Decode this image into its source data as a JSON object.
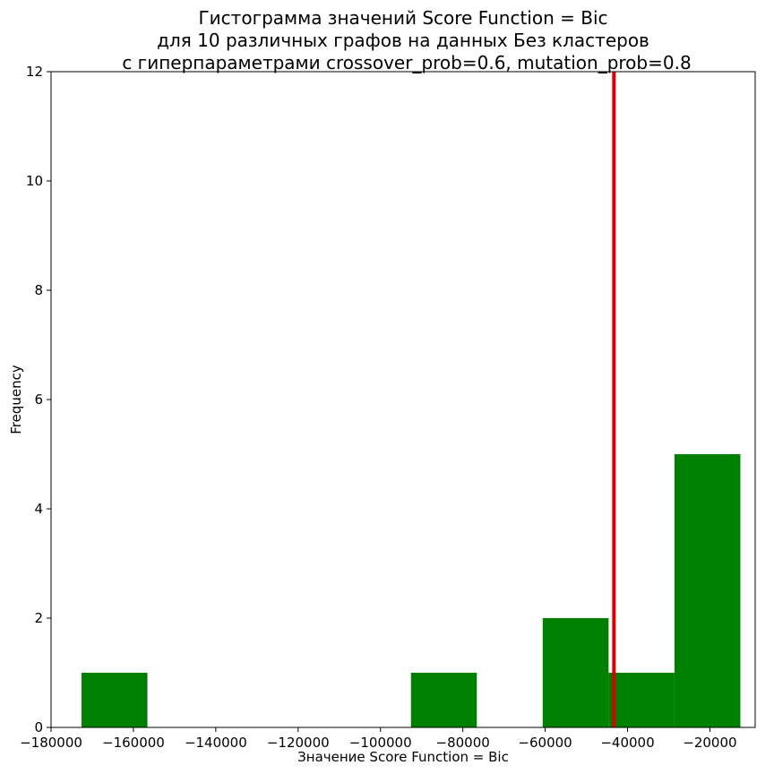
{
  "chart_data": {
    "type": "bar",
    "title_lines": [
      "Гистограмма значений Score Function = Bic",
      "для 10 различных графов на данных Без кластеров",
      "с гиперпараметрами crossover_prob=0.6, mutation_prob=0.8"
    ],
    "xlabel": "Значение Score Function = Bic",
    "ylabel": "Frequency",
    "xlim": [
      -180000,
      -9000
    ],
    "ylim": [
      0,
      12
    ],
    "xticks": [
      -180000,
      -160000,
      -140000,
      -120000,
      -100000,
      -80000,
      -60000,
      -40000,
      -20000
    ],
    "xtick_labels": [
      "−180000",
      "−160000",
      "−140000",
      "−120000",
      "−100000",
      "−80000",
      "−60000",
      "−40000",
      "−20000"
    ],
    "yticks": [
      0,
      2,
      4,
      6,
      8,
      10,
      12
    ],
    "ytick_labels": [
      "0",
      "2",
      "4",
      "6",
      "8",
      "10",
      "12"
    ],
    "bins": [
      {
        "x0": -172600,
        "x1": -156600,
        "count": 1
      },
      {
        "x0": -156600,
        "x1": -140600,
        "count": 0
      },
      {
        "x0": -140600,
        "x1": -124600,
        "count": 0
      },
      {
        "x0": -124600,
        "x1": -108600,
        "count": 0
      },
      {
        "x0": -108600,
        "x1": -92600,
        "count": 0
      },
      {
        "x0": -92600,
        "x1": -76600,
        "count": 1
      },
      {
        "x0": -76600,
        "x1": -60600,
        "count": 0
      },
      {
        "x0": -60600,
        "x1": -44600,
        "count": 2
      },
      {
        "x0": -44600,
        "x1": -28600,
        "count": 1
      },
      {
        "x0": -28600,
        "x1": -12600,
        "count": 5
      }
    ],
    "bar_color": "#008000",
    "vline": {
      "x": -43300,
      "color": "#dd0000"
    },
    "grid": false,
    "legend": false
  }
}
